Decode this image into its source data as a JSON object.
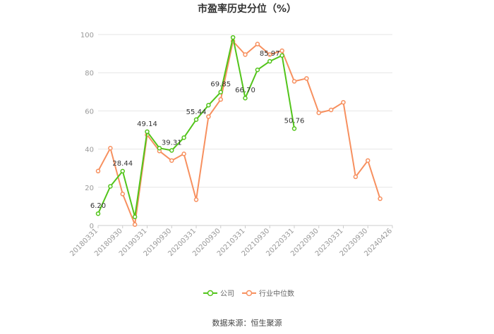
{
  "chart_data": {
    "type": "line",
    "title": "市盈率历史分位（%）",
    "source": "数据来源：恒生聚源",
    "ylim": [
      0,
      100
    ],
    "yticks": [
      0,
      20,
      40,
      60,
      80,
      100
    ],
    "xlabels": [
      "20180331",
      "20180930",
      "20190331",
      "20190930",
      "20200331",
      "20200930",
      "20210331",
      "20210930",
      "20220331",
      "20220930",
      "20230331",
      "20230930",
      "20240426"
    ],
    "x": [
      "20180331",
      "20180630",
      "20180930",
      "20181231",
      "20190331",
      "20190630",
      "20190930",
      "20191231",
      "20200331",
      "20200630",
      "20200930",
      "20201231",
      "20210331",
      "20210630",
      "20210930",
      "20211231",
      "20220331",
      "20220630",
      "20220930",
      "20221231",
      "20230331",
      "20230630",
      "20230930",
      "20231231",
      "20240426"
    ],
    "grid": true,
    "legend_position": "bottom",
    "series": [
      {
        "name": "公司",
        "color": "#52c41a",
        "values": [
          6.2,
          20.5,
          28.44,
          4.5,
          49.14,
          40.5,
          39.31,
          46.0,
          55.44,
          63.0,
          69.85,
          98.5,
          66.7,
          81.5,
          85.97,
          89.0,
          50.76,
          null,
          null,
          null,
          null,
          null,
          null,
          null,
          null
        ],
        "labels": {
          "0": "6.20",
          "2": "28.44",
          "4": "49.14",
          "6": "39.31",
          "8": "55.44",
          "10": "69.85",
          "12": "66.70",
          "14": "85.97",
          "16": "50.76"
        }
      },
      {
        "name": "行业中位数",
        "color": "#f7905f",
        "values": [
          28.5,
          40.5,
          16.5,
          0.5,
          47.5,
          39.0,
          34.0,
          37.5,
          13.5,
          57.0,
          66.0,
          96.5,
          89.5,
          95.0,
          89.5,
          91.5,
          75.5,
          77.0,
          59.0,
          60.5,
          64.5,
          25.5,
          34.0,
          14.0,
          null
        ],
        "labels": {}
      }
    ]
  }
}
